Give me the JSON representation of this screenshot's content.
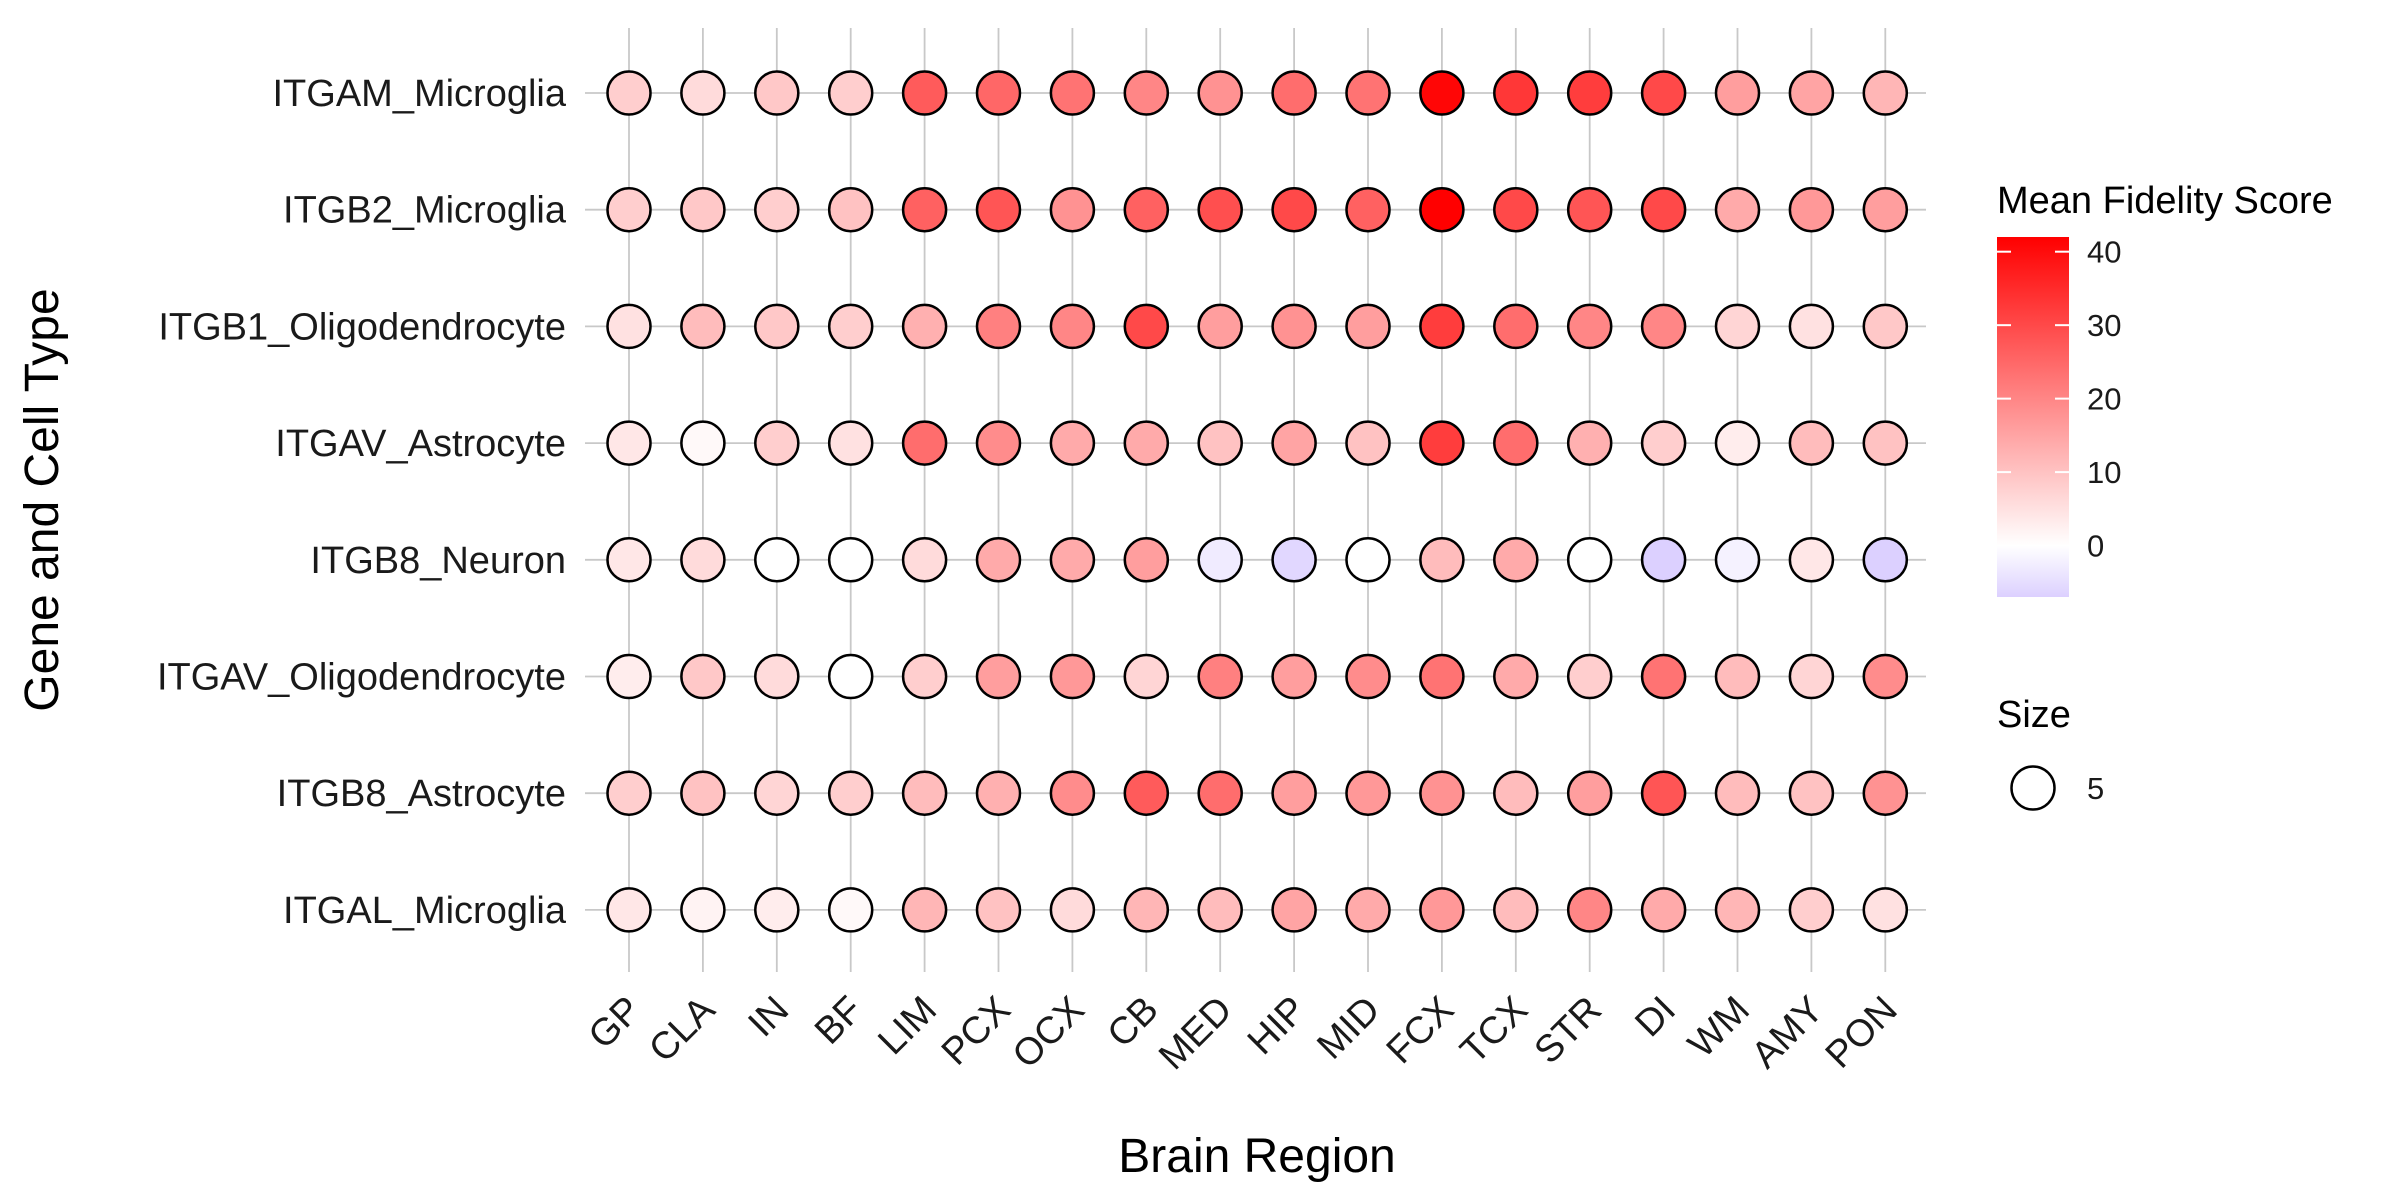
{
  "chart_data": {
    "type": "scatter",
    "xlabel": "Brain Region",
    "ylabel": "Gene and Cell Type",
    "x_categories": [
      "GP",
      "CLA",
      "IN",
      "BF",
      "LIM",
      "PCX",
      "OCX",
      "CB",
      "MED",
      "HIP",
      "MID",
      "FCX",
      "TCX",
      "STR",
      "DI",
      "WM",
      "AMY",
      "PON"
    ],
    "y_categories": [
      "ITGAM_Microglia",
      "ITGB2_Microglia",
      "ITGB1_Oligodendrocyte",
      "ITGAV_Astrocyte",
      "ITGB8_Neuron",
      "ITGAV_Oligodendrocyte",
      "ITGB8_Astrocyte",
      "ITGAL_Microglia"
    ],
    "values": [
      [
        8,
        6,
        9,
        8,
        27,
        25,
        23,
        20,
        18,
        24,
        23,
        41,
        33,
        32,
        30,
        16,
        15,
        12
      ],
      [
        8,
        9,
        8,
        10,
        26,
        28,
        18,
        26,
        29,
        30,
        26,
        42,
        30,
        28,
        30,
        14,
        17,
        16
      ],
      [
        5,
        11,
        9,
        8,
        13,
        21,
        20,
        30,
        16,
        18,
        16,
        32,
        24,
        20,
        20,
        7,
        5,
        9
      ],
      [
        4,
        1,
        8,
        5,
        24,
        19,
        14,
        14,
        10,
        15,
        10,
        32,
        24,
        13,
        8,
        3,
        11,
        10
      ],
      [
        4,
        6,
        0,
        0,
        6,
        14,
        14,
        16,
        -3,
        -6,
        0,
        11,
        14,
        0,
        -13,
        -2,
        4,
        -8
      ],
      [
        3,
        9,
        6,
        0,
        8,
        16,
        17,
        7,
        21,
        16,
        19,
        23,
        14,
        8,
        23,
        11,
        7,
        19
      ],
      [
        8,
        10,
        7,
        8,
        11,
        13,
        19,
        27,
        24,
        16,
        17,
        18,
        11,
        16,
        28,
        11,
        10,
        18
      ],
      [
        4,
        2,
        3,
        1,
        12,
        10,
        6,
        12,
        11,
        15,
        14,
        17,
        11,
        20,
        14,
        12,
        8,
        5
      ]
    ],
    "size_value": 5,
    "color_scale": {
      "min": -7,
      "mid": 0,
      "max": 42,
      "low_color": "#dcd0ff",
      "mid_color": "#ffffff",
      "high_color": "#ff0000",
      "ticks": [
        0,
        10,
        20,
        30,
        40
      ]
    },
    "legend": {
      "color_title": "Mean Fidelity Score",
      "size_title": "Size",
      "size_label": "5",
      "placement": "right"
    },
    "grid": true,
    "grid_color": "#c8c8c8"
  }
}
